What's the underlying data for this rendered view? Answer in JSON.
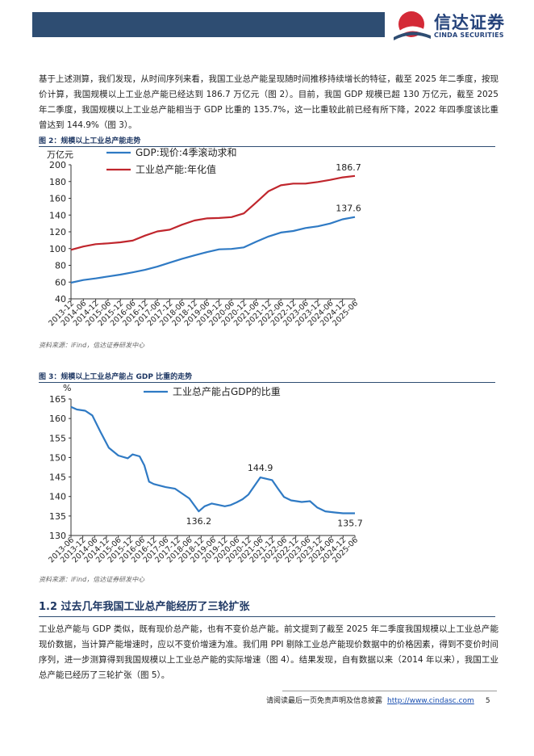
{
  "header": {
    "logo_cn": "信达证券",
    "logo_en": "CINDA SECURITIES"
  },
  "intro_paragraph": "基于上述测算，我们发现，从时间序列来看，我国工业总产能呈现随时间推移持续增长的特征，截至 2025 年二季度，按现价计算，我国规模以上工业总产能已经达到 186.7 万亿元（图 2）。目前，我国 GDP 规模已超 130 万亿元，截至 2025 年二季度，我国规模以上工业总产能相当于 GDP 比重的 135.7%，这一比重较此前已经有所下降，2022 年四季度该比重曾达到 144.9%（图 3）。",
  "figure2": {
    "title": "图 2：规模以上工业总产能走势",
    "source": "资料来源：iFind，信达证券研发中心"
  },
  "figure3": {
    "title": "图 3：规模以上工业总产能占 GDP 比重的走势",
    "source": "资料来源：iFind，信达证券研发中心"
  },
  "section": {
    "title": "1.2 过去几年我国工业总产能经历了三轮扩张"
  },
  "body_paragraph": "工业总产能与 GDP 类似，既有现价总产能，也有不变价总产能。前文提到了截至 2025 年二季度我国规模以上工业总产能现价数据，当计算产能增速时，应以不变价增速为准。我们用 PPI 剔除工业总产能现价数据中的价格因素，得到不变价时间序列，进一步测算得到我国规模以上工业总产能的实际增速（图 4）。结果发现，自有数据以来（2014 年以来），我国工业总产能已经历了三轮扩张（图 5）。",
  "footer": {
    "disclaimer": "请阅读最后一页免责声明及信息披露",
    "url": "http://www.cindasc.com",
    "page": "5"
  },
  "chart_data": [
    {
      "type": "line",
      "unit_label": "万亿元",
      "ylim": [
        40,
        200
      ],
      "yticks": [
        40,
        60,
        80,
        100,
        120,
        140,
        160,
        180,
        200
      ],
      "x_tick_labels": [
        "2013-12",
        "2014-06",
        "2014-12",
        "2015-06",
        "2015-12",
        "2016-06",
        "2016-12",
        "2017-06",
        "2017-12",
        "2018-06",
        "2018-12",
        "2019-06",
        "2019-12",
        "2020-06",
        "2020-12",
        "2021-06",
        "2021-12",
        "2022-06",
        "2022-12",
        "2023-06",
        "2023-12",
        "2024-06",
        "2024-12",
        "2025-06"
      ],
      "series": [
        {
          "name": "GDP:现价:4季滚动求和",
          "color": "#2f7ac4",
          "values": [
            59.3,
            62.5,
            64.4,
            66.7,
            68.9,
            71.6,
            74.6,
            78.5,
            83.2,
            87.8,
            91.9,
            95.7,
            99.1,
            99.6,
            101.4,
            108.1,
            114.4,
            119.1,
            121.0,
            124.5,
            126.6,
            129.9,
            134.9,
            137.6
          ],
          "end_label": "137.6"
        },
        {
          "name": "工业总产能:年化值",
          "color": "#c0262d",
          "values": [
            98.5,
            102.5,
            105.3,
            106.2,
            107.5,
            109.5,
            115.5,
            120.5,
            122.5,
            128.5,
            133.5,
            136.0,
            136.5,
            137.5,
            142.0,
            155.0,
            168.5,
            175.5,
            177.5,
            177.5,
            179.5,
            182.0,
            185.0,
            186.7
          ],
          "end_label": "186.7"
        }
      ]
    },
    {
      "type": "line",
      "unit_label": "%",
      "ylim": [
        130,
        165
      ],
      "yticks": [
        130,
        135,
        140,
        145,
        150,
        155,
        160,
        165
      ],
      "x_tick_labels": [
        "2013-06",
        "2013-12",
        "2014-06",
        "2014-12",
        "2015-06",
        "2015-12",
        "2016-06",
        "2016-12",
        "2017-06",
        "2017-12",
        "2018-06",
        "2018-12",
        "2019-06",
        "2019-12",
        "2020-06",
        "2020-12",
        "2021-06",
        "2021-12",
        "2022-06",
        "2022-12",
        "2023-06",
        "2023-12",
        "2024-06",
        "2024-12",
        "2025-06"
      ],
      "series": [
        {
          "name": "工业总产能占GDP的比重",
          "color": "#2f7ac4",
          "x_index": [
            0.0,
            0.5,
            1.2,
            1.8,
            2.5,
            3.2,
            4.0,
            4.8,
            5.2,
            5.8,
            6.2,
            6.6,
            7.0,
            7.5,
            8.0,
            8.8,
            10.0,
            10.8,
            11.3,
            11.9,
            12.4,
            13.0,
            13.5,
            14.0,
            14.5,
            15.0,
            15.5,
            16.0,
            17.0,
            17.5,
            18.0,
            18.6,
            19.5,
            20.2,
            20.8,
            21.5,
            22.3,
            23.0,
            24.0
          ],
          "values": [
            163.0,
            162.3,
            162.0,
            160.8,
            156.5,
            152.5,
            150.5,
            149.8,
            150.8,
            150.3,
            148.0,
            143.8,
            143.2,
            142.8,
            142.4,
            142.0,
            139.5,
            136.2,
            137.5,
            138.2,
            137.9,
            137.5,
            137.8,
            138.5,
            139.3,
            140.5,
            142.7,
            144.9,
            144.2,
            142.0,
            139.9,
            139.0,
            138.6,
            138.8,
            137.2,
            136.2,
            135.9,
            135.7,
            135.7
          ],
          "annotations": [
            {
              "index": 17,
              "label": "136.2"
            },
            {
              "index": 27,
              "label": "144.9"
            },
            {
              "index": 38,
              "label": "135.7"
            }
          ]
        }
      ]
    }
  ]
}
